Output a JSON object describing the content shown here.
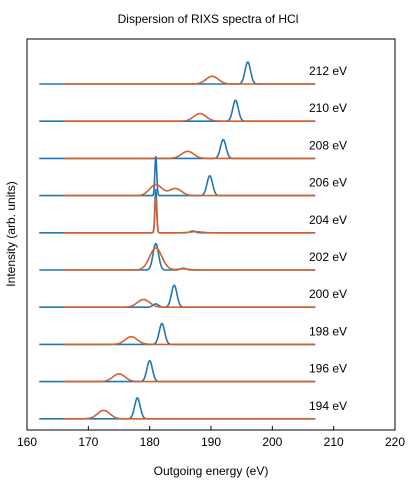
{
  "chart_data": {
    "type": "line",
    "title": "Dispersion of RIXS spectra of HCl",
    "xlabel": "Outgoing energy (eV)",
    "ylabel": "Intensity (arb. units)",
    "xlim": [
      160,
      220
    ],
    "xticks": [
      160,
      170,
      180,
      190,
      200,
      210,
      220
    ],
    "yticks_shown": false,
    "grid": false,
    "legend": "none",
    "colors": {
      "series_a": "#1f77b4",
      "series_b": "#d4602a"
    },
    "panels": [
      {
        "label": "212 eV",
        "blue": {
          "x_range": [
            162,
            207
          ],
          "peaks": [
            {
              "x": 196.0,
              "h": 1.0
            }
          ]
        },
        "orange": {
          "x_range": [
            166,
            207
          ],
          "peaks": [
            {
              "x": 190.2,
              "h": 0.35
            }
          ]
        }
      },
      {
        "label": "210 eV",
        "blue": {
          "x_range": [
            162,
            207
          ],
          "peaks": [
            {
              "x": 194.0,
              "h": 0.95
            }
          ]
        },
        "orange": {
          "x_range": [
            166,
            207
          ],
          "peaks": [
            {
              "x": 188.2,
              "h": 0.35
            }
          ]
        }
      },
      {
        "label": "208 eV",
        "blue": {
          "x_range": [
            162,
            207
          ],
          "peaks": [
            {
              "x": 192.0,
              "h": 0.85
            }
          ]
        },
        "orange": {
          "x_range": [
            166,
            207
          ],
          "peaks": [
            {
              "x": 186.2,
              "h": 0.32
            }
          ]
        }
      },
      {
        "label": "206 eV",
        "blue": {
          "x_range": [
            162,
            207
          ],
          "peaks": [
            {
              "x": 181.0,
              "h": 1.8
            },
            {
              "x": 189.8,
              "h": 0.9
            }
          ]
        },
        "orange": {
          "x_range": [
            166,
            207
          ],
          "peaks": [
            {
              "x": 181.0,
              "h": 0.5
            },
            {
              "x": 184.2,
              "h": 0.32
            }
          ]
        }
      },
      {
        "label": "204 eV",
        "blue": {
          "x_range": [
            162,
            207
          ],
          "peaks": [
            {
              "x": 181.0,
              "h": 2.0
            },
            {
              "x": 187.0,
              "h": 0.08
            }
          ]
        },
        "orange": {
          "x_range": [
            166,
            207
          ],
          "peaks": [
            {
              "x": 181.0,
              "h": 1.6
            },
            {
              "x": 187.5,
              "h": 0.05
            }
          ]
        }
      },
      {
        "label": "202 eV",
        "blue": {
          "x_range": [
            162,
            207
          ],
          "peaks": [
            {
              "x": 181.0,
              "h": 1.2
            },
            {
              "x": 185.5,
              "h": 0.08
            }
          ]
        },
        "orange": {
          "x_range": [
            166,
            207
          ],
          "peaks": [
            {
              "x": 181.0,
              "h": 1.0
            },
            {
              "x": 185.5,
              "h": 0.05
            }
          ]
        }
      },
      {
        "label": "200 eV",
        "blue": {
          "x_range": [
            162,
            207
          ],
          "peaks": [
            {
              "x": 184.0,
              "h": 1.0
            },
            {
              "x": 181.0,
              "h": 0.15
            }
          ]
        },
        "orange": {
          "x_range": [
            166,
            207
          ],
          "peaks": [
            {
              "x": 179.0,
              "h": 0.35
            }
          ]
        }
      },
      {
        "label": "198 eV",
        "blue": {
          "x_range": [
            162,
            207
          ],
          "peaks": [
            {
              "x": 182.0,
              "h": 0.95
            }
          ]
        },
        "orange": {
          "x_range": [
            166,
            207
          ],
          "peaks": [
            {
              "x": 177.0,
              "h": 0.35
            }
          ]
        }
      },
      {
        "label": "196 eV",
        "blue": {
          "x_range": [
            162,
            207
          ],
          "peaks": [
            {
              "x": 180.0,
              "h": 0.95
            }
          ]
        },
        "orange": {
          "x_range": [
            166,
            207
          ],
          "peaks": [
            {
              "x": 175.0,
              "h": 0.35
            }
          ]
        }
      },
      {
        "label": "194 eV",
        "blue": {
          "x_range": [
            162,
            207
          ],
          "peaks": [
            {
              "x": 178.0,
              "h": 0.95
            }
          ]
        },
        "orange": {
          "x_range": [
            166,
            207
          ],
          "peaks": [
            {
              "x": 172.5,
              "h": 0.38
            }
          ]
        }
      }
    ]
  }
}
